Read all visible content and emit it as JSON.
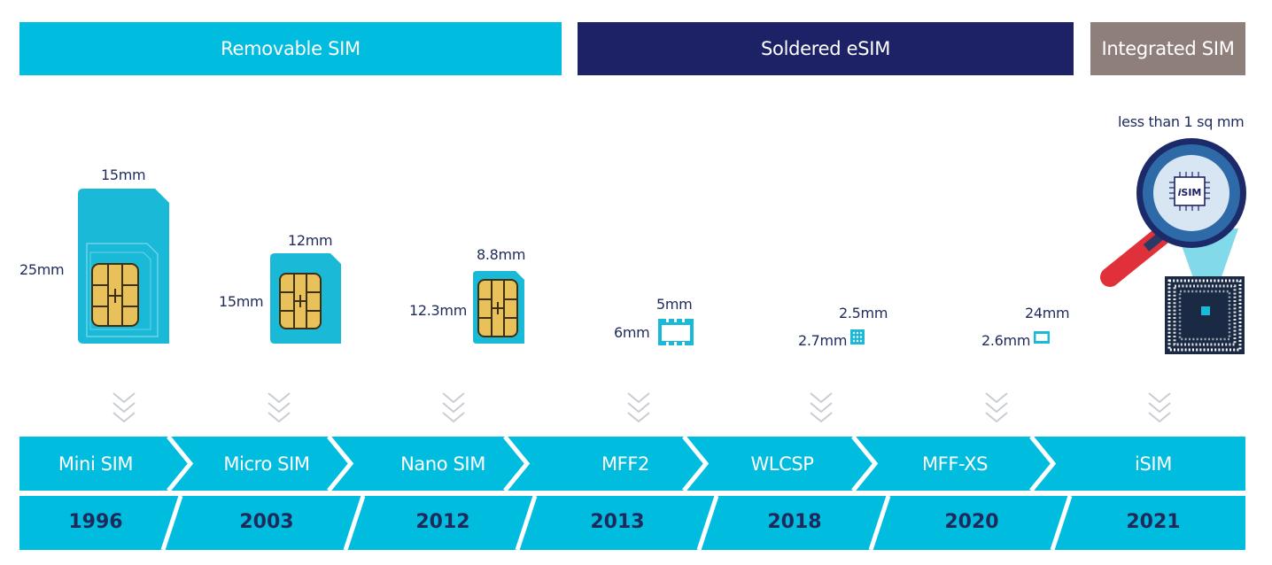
{
  "categories": {
    "removable": "Removable SIM",
    "soldered": "Soldered eSIM",
    "integrated": "Integrated SIM"
  },
  "formats": [
    {
      "name": "Mini SIM",
      "year": "1996",
      "width_label": "15mm",
      "height_label": "25mm"
    },
    {
      "name": "Micro SIM",
      "year": "2003",
      "width_label": "12mm",
      "height_label": "15mm"
    },
    {
      "name": "Nano SIM",
      "year": "2012",
      "width_label": "8.8mm",
      "height_label": "12.3mm"
    },
    {
      "name": "MFF2",
      "year": "2013",
      "width_label": "5mm",
      "height_label": "6mm"
    },
    {
      "name": "WLCSP",
      "year": "2018",
      "width_label": "2.5mm",
      "height_label": "2.7mm"
    },
    {
      "name": "MFF-XS",
      "year": "2020",
      "width_label": "24mm",
      "height_label": "2.6mm"
    },
    {
      "name": "iSIM",
      "year": "2021",
      "size_label": "less than 1 sq mm"
    }
  ],
  "isim_badge": {
    "prefix": "i",
    "suffix": "SIM"
  },
  "colors": {
    "cyan": "#00bde0",
    "navy": "#1d2266",
    "taupe": "#8e7f7b",
    "text": "#1f2a5c",
    "chip_gold": "#e9c15a"
  },
  "icons": {
    "arrow": "chevron-down-triple-icon",
    "isim": "magnifier-chip-icon"
  }
}
